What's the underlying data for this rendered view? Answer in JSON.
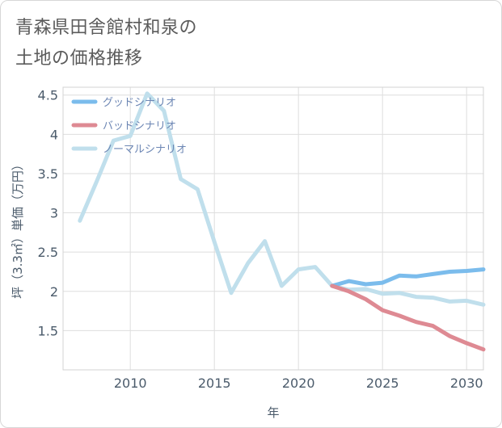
{
  "title_lines": [
    "青森県田舎館村和泉の",
    "土地の価格推移"
  ],
  "chart_data": {
    "type": "line",
    "xlabel": "年",
    "ylabel": "坪（3.3㎡）単価（万円）",
    "xlim": [
      2006,
      2031
    ],
    "ylim": [
      1.0,
      4.6
    ],
    "x_ticks": [
      2010,
      2015,
      2020,
      2025,
      2030
    ],
    "y_ticks": [
      1.5,
      2,
      2.5,
      3,
      3.5,
      4,
      4.5
    ],
    "y_tick_labels": [
      "1.5",
      "2",
      "2.5",
      "3",
      "3.5",
      "4",
      "4.5"
    ],
    "grid": true,
    "legend_position": "top-left",
    "series": [
      {
        "name": "グッドシナリオ",
        "color": "#7bbcec",
        "x": [
          2022,
          2023,
          2024,
          2025,
          2026,
          2027,
          2028,
          2029,
          2030,
          2031
        ],
        "values": [
          2.07,
          2.13,
          2.09,
          2.11,
          2.2,
          2.19,
          2.22,
          2.25,
          2.26,
          2.28
        ]
      },
      {
        "name": "バッドシナリオ",
        "color": "#de8a93",
        "x": [
          2022,
          2023,
          2024,
          2025,
          2026,
          2027,
          2028,
          2029,
          2030,
          2031
        ],
        "values": [
          2.07,
          2.0,
          1.9,
          1.76,
          1.69,
          1.61,
          1.56,
          1.43,
          1.34,
          1.26
        ]
      },
      {
        "name": "ノーマルシナリオ",
        "color": "#c0dfec",
        "x": [
          2007,
          2008,
          2009,
          2010,
          2011,
          2012,
          2013,
          2014,
          2015,
          2016,
          2017,
          2018,
          2019,
          2020,
          2021,
          2022,
          2023,
          2024,
          2025,
          2026,
          2027,
          2028,
          2029,
          2030,
          2031
        ],
        "values": [
          2.9,
          3.4,
          3.92,
          3.98,
          4.52,
          4.3,
          3.43,
          3.3,
          2.63,
          1.98,
          2.36,
          2.64,
          2.07,
          2.28,
          2.31,
          2.07,
          2.02,
          2.03,
          1.97,
          1.98,
          1.93,
          1.92,
          1.87,
          1.88,
          1.83
        ]
      }
    ]
  }
}
